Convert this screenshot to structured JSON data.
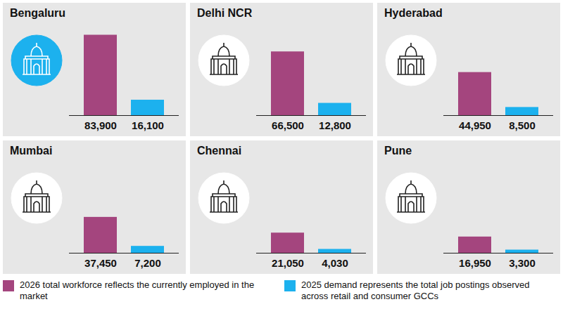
{
  "chart_data": [
    {
      "type": "bar",
      "title": "Bengaluru",
      "categories": [
        null
      ],
      "series": [
        {
          "name": "2026 total workforce reflects the currently employed in the market",
          "color": "#a4457e",
          "values": [
            83900
          ],
          "value_labels": [
            "83,900"
          ]
        },
        {
          "name": "2025 demand represents the total job postings observed across retail and consumer GCCs",
          "color": "#1cb1ee",
          "values": [
            16100
          ],
          "value_labels": [
            "16,100"
          ]
        }
      ],
      "ylim": [
        0,
        85000
      ],
      "tick_labels": false,
      "data_labels": true,
      "legend": "bottom"
    },
    {
      "type": "bar",
      "title": "Delhi NCR",
      "categories": [
        null
      ],
      "series": [
        {
          "name": "2026 total workforce reflects the currently employed in the market",
          "color": "#a4457e",
          "values": [
            66500
          ],
          "value_labels": [
            "66,500"
          ]
        },
        {
          "name": "2025 demand represents the total job postings observed across retail and consumer GCCs",
          "color": "#1cb1ee",
          "values": [
            12800
          ],
          "value_labels": [
            "12,800"
          ]
        }
      ],
      "ylim": [
        0,
        85000
      ],
      "tick_labels": false,
      "data_labels": true,
      "legend": "bottom"
    },
    {
      "type": "bar",
      "title": "Hyderabad",
      "categories": [
        null
      ],
      "series": [
        {
          "name": "2026 total workforce reflects the currently employed in the market",
          "color": "#a4457e",
          "values": [
            44950
          ],
          "value_labels": [
            "44,950"
          ]
        },
        {
          "name": "2025 demand represents the total job postings observed across retail and consumer GCCs",
          "color": "#1cb1ee",
          "values": [
            8500
          ],
          "value_labels": [
            "8,500"
          ]
        }
      ],
      "ylim": [
        0,
        85000
      ],
      "tick_labels": false,
      "data_labels": true,
      "legend": "bottom"
    },
    {
      "type": "bar",
      "title": "Mumbai",
      "categories": [
        null
      ],
      "series": [
        {
          "name": "2026 total workforce reflects the currently employed in the market",
          "color": "#a4457e",
          "values": [
            37450
          ],
          "value_labels": [
            "37,450"
          ]
        },
        {
          "name": "2025 demand represents the total job postings observed across retail and consumer GCCs",
          "color": "#1cb1ee",
          "values": [
            7200
          ],
          "value_labels": [
            "7,200"
          ]
        }
      ],
      "ylim": [
        0,
        85000
      ],
      "tick_labels": false,
      "data_labels": true,
      "legend": "bottom"
    },
    {
      "type": "bar",
      "title": "Chennai",
      "categories": [
        null
      ],
      "series": [
        {
          "name": "2026 total workforce reflects the currently employed in the market",
          "color": "#a4457e",
          "values": [
            21050
          ],
          "value_labels": [
            "21,050"
          ]
        },
        {
          "name": "2025 demand represents the total job postings observed across retail and consumer GCCs",
          "color": "#1cb1ee",
          "values": [
            4030
          ],
          "value_labels": [
            "4,030"
          ]
        }
      ],
      "ylim": [
        0,
        85000
      ],
      "tick_labels": false,
      "data_labels": true,
      "legend": "bottom"
    },
    {
      "type": "bar",
      "title": "Pune",
      "categories": [
        null
      ],
      "series": [
        {
          "name": "2026 total workforce reflects the currently employed in the market",
          "color": "#a4457e",
          "values": [
            16950
          ],
          "value_labels": [
            "16,950"
          ]
        },
        {
          "name": "2025 demand represents the total job postings observed across retail and consumer GCCs",
          "color": "#1cb1ee",
          "values": [
            3300
          ],
          "value_labels": [
            "3,300"
          ]
        }
      ],
      "ylim": [
        0,
        85000
      ],
      "tick_labels": false,
      "data_labels": true,
      "legend": "bottom"
    }
  ]
}
